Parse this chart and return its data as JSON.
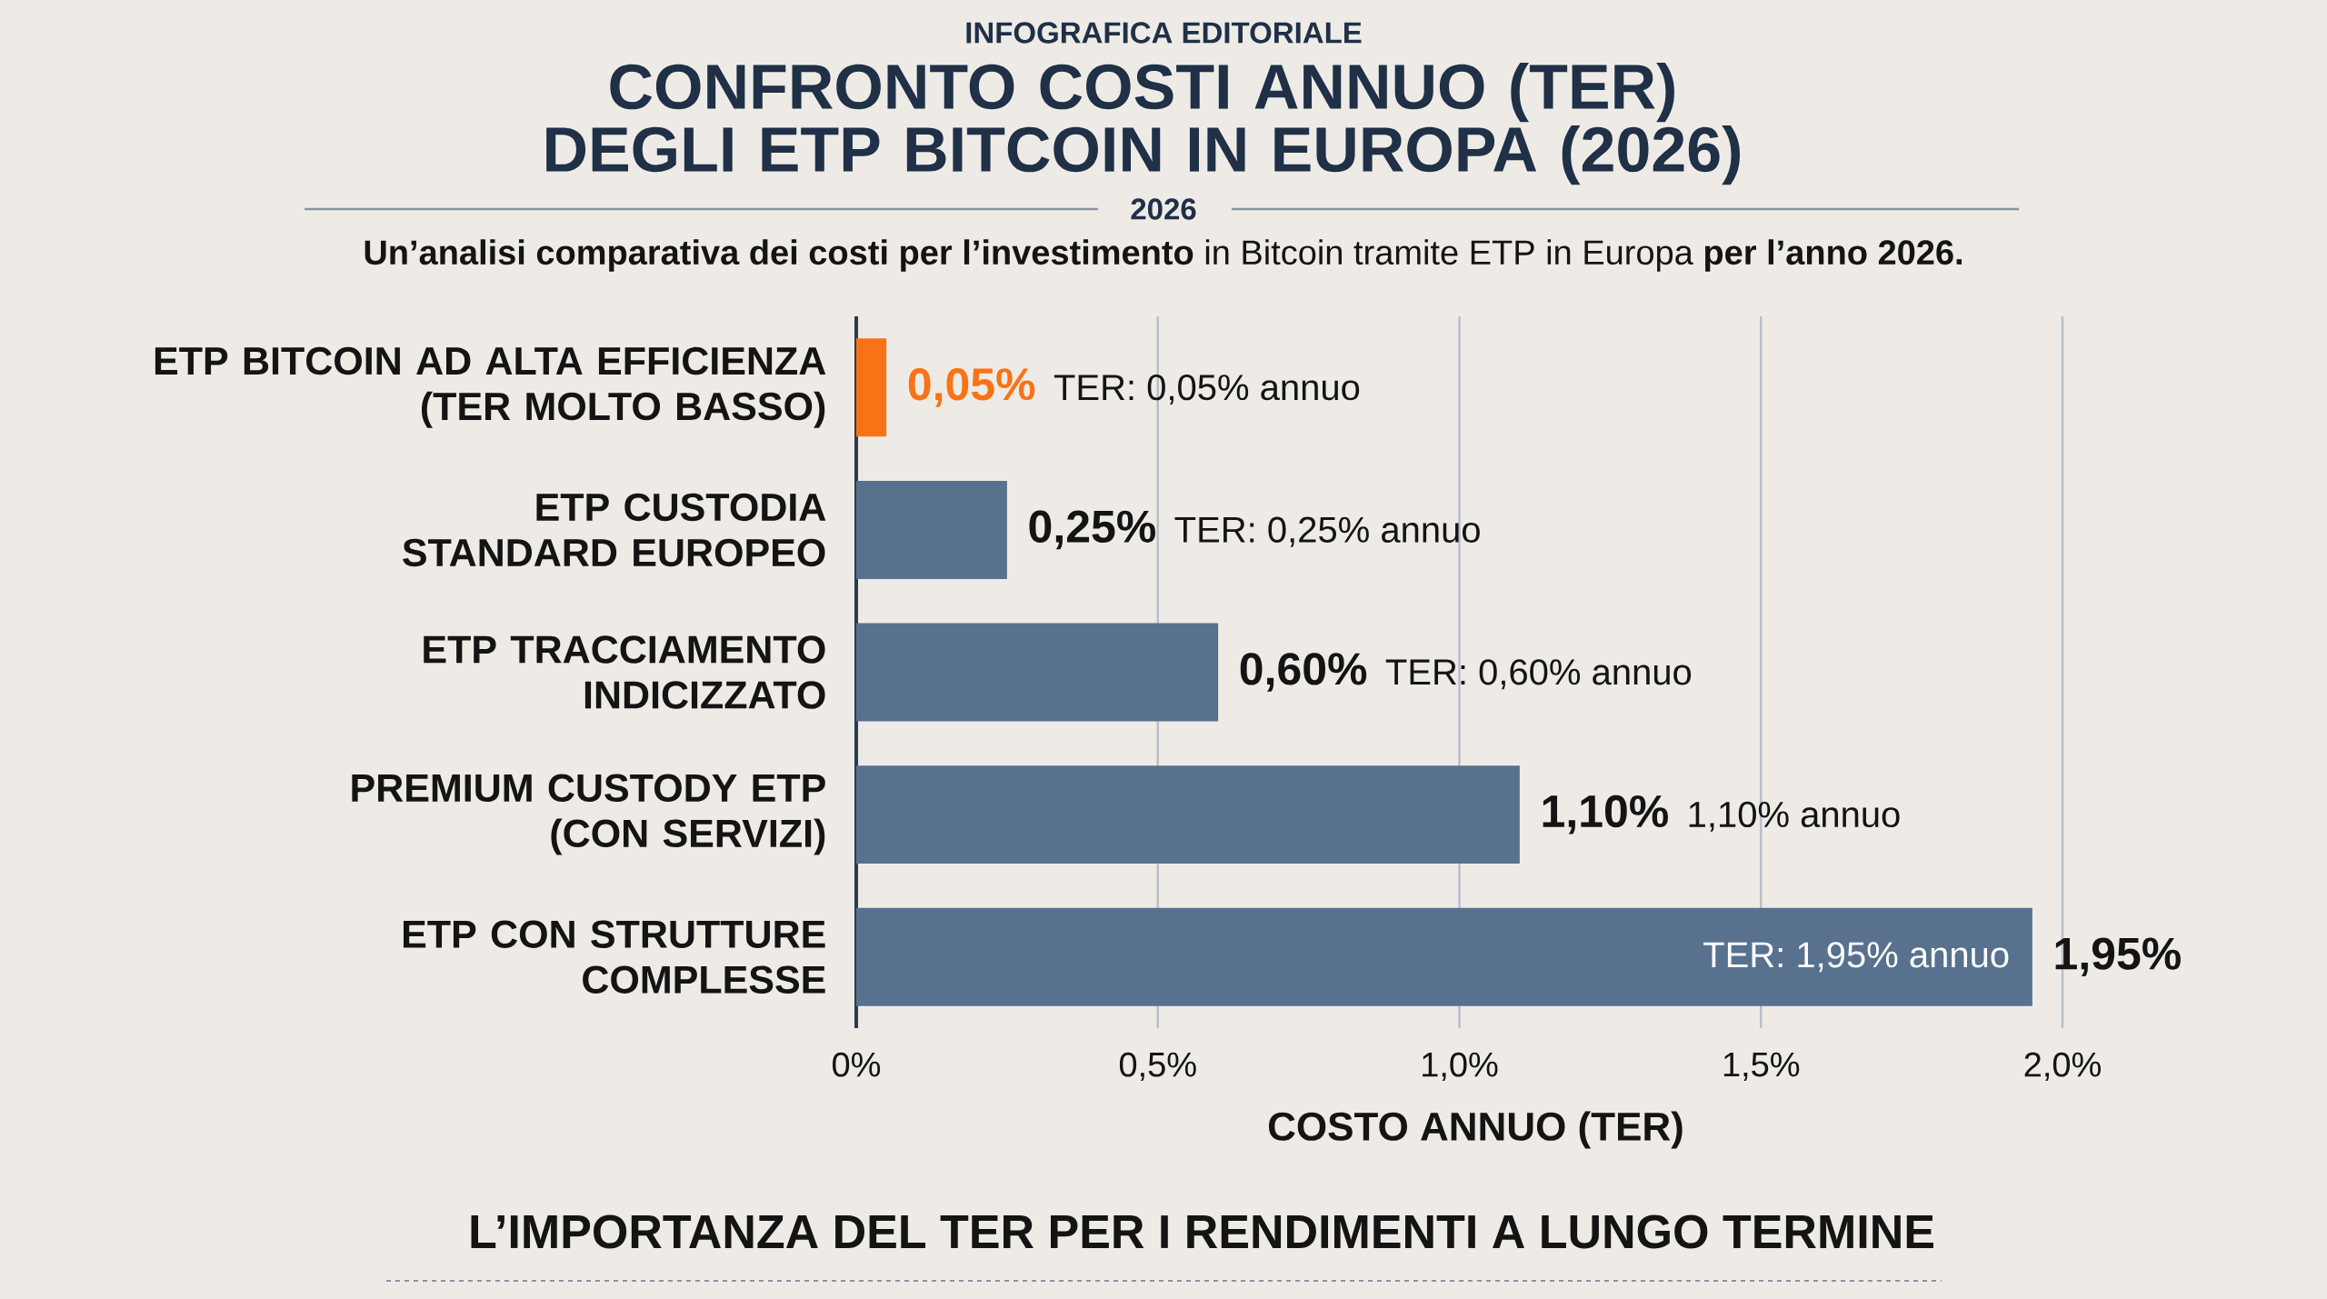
{
  "chart_data": {
    "type": "bar",
    "orientation": "horizontal",
    "title": "CONFRONTO COSTI ANNUO (TER)\nDEGLI ETP BITCOIN IN EUROPA (2026)",
    "subtitle": "**Un’analisi comparativa dei costi per l’investimento** in Bitcoin tramite ETP in Europa **per l’anno 2026.**",
    "xlabel": "COSTO ANNUO (TER)",
    "categories": [
      "ETP BITCOIN AD ALTA EFFICIENZA\n(TER MOLTO BASSO)",
      "ETP CUSTODIA\nSTANDARD EUROPEO",
      "ETP TRACCIAMENTO\nINDICIZZATO",
      "PREMIUM CUSTODY ETP\n(CON SERVIZI)",
      "ETP CON STRUTTURE\nCOMPLESSE"
    ],
    "values": [
      0.05,
      0.25,
      0.6,
      1.1,
      1.95
    ],
    "colors": [
      "#f97316",
      "#57718f",
      "#57718f",
      "#57718f",
      "#57718f"
    ],
    "value_labels": [
      "0,05%",
      "0,25%",
      "0,60%",
      "1,10%",
      "1,95%"
    ],
    "xlim": [
      0,
      2.0
    ],
    "xticks": [
      {
        "value": 0,
        "label": "0%"
      },
      {
        "value": 0.5,
        "label": "0,5%"
      },
      {
        "value": 1.0,
        "label": "1,0%"
      },
      {
        "value": 1.5,
        "label": "1,5%"
      },
      {
        "value": 2.0,
        "label": "2,0%"
      }
    ],
    "grid": "x",
    "annotations": [
      "INFOGRAFICA EDITORIALE",
      "2026",
      "TER: 0,05% annuo",
      "TER: 0,25% annuo",
      "TER: 0,60% annuo",
      "1,10% annuo",
      "TER: 1,95% annuo",
      "L’IMPORTANZA DEL TER PER I RENDIMENTI A LUNGO TERMINE"
    ]
  }
}
